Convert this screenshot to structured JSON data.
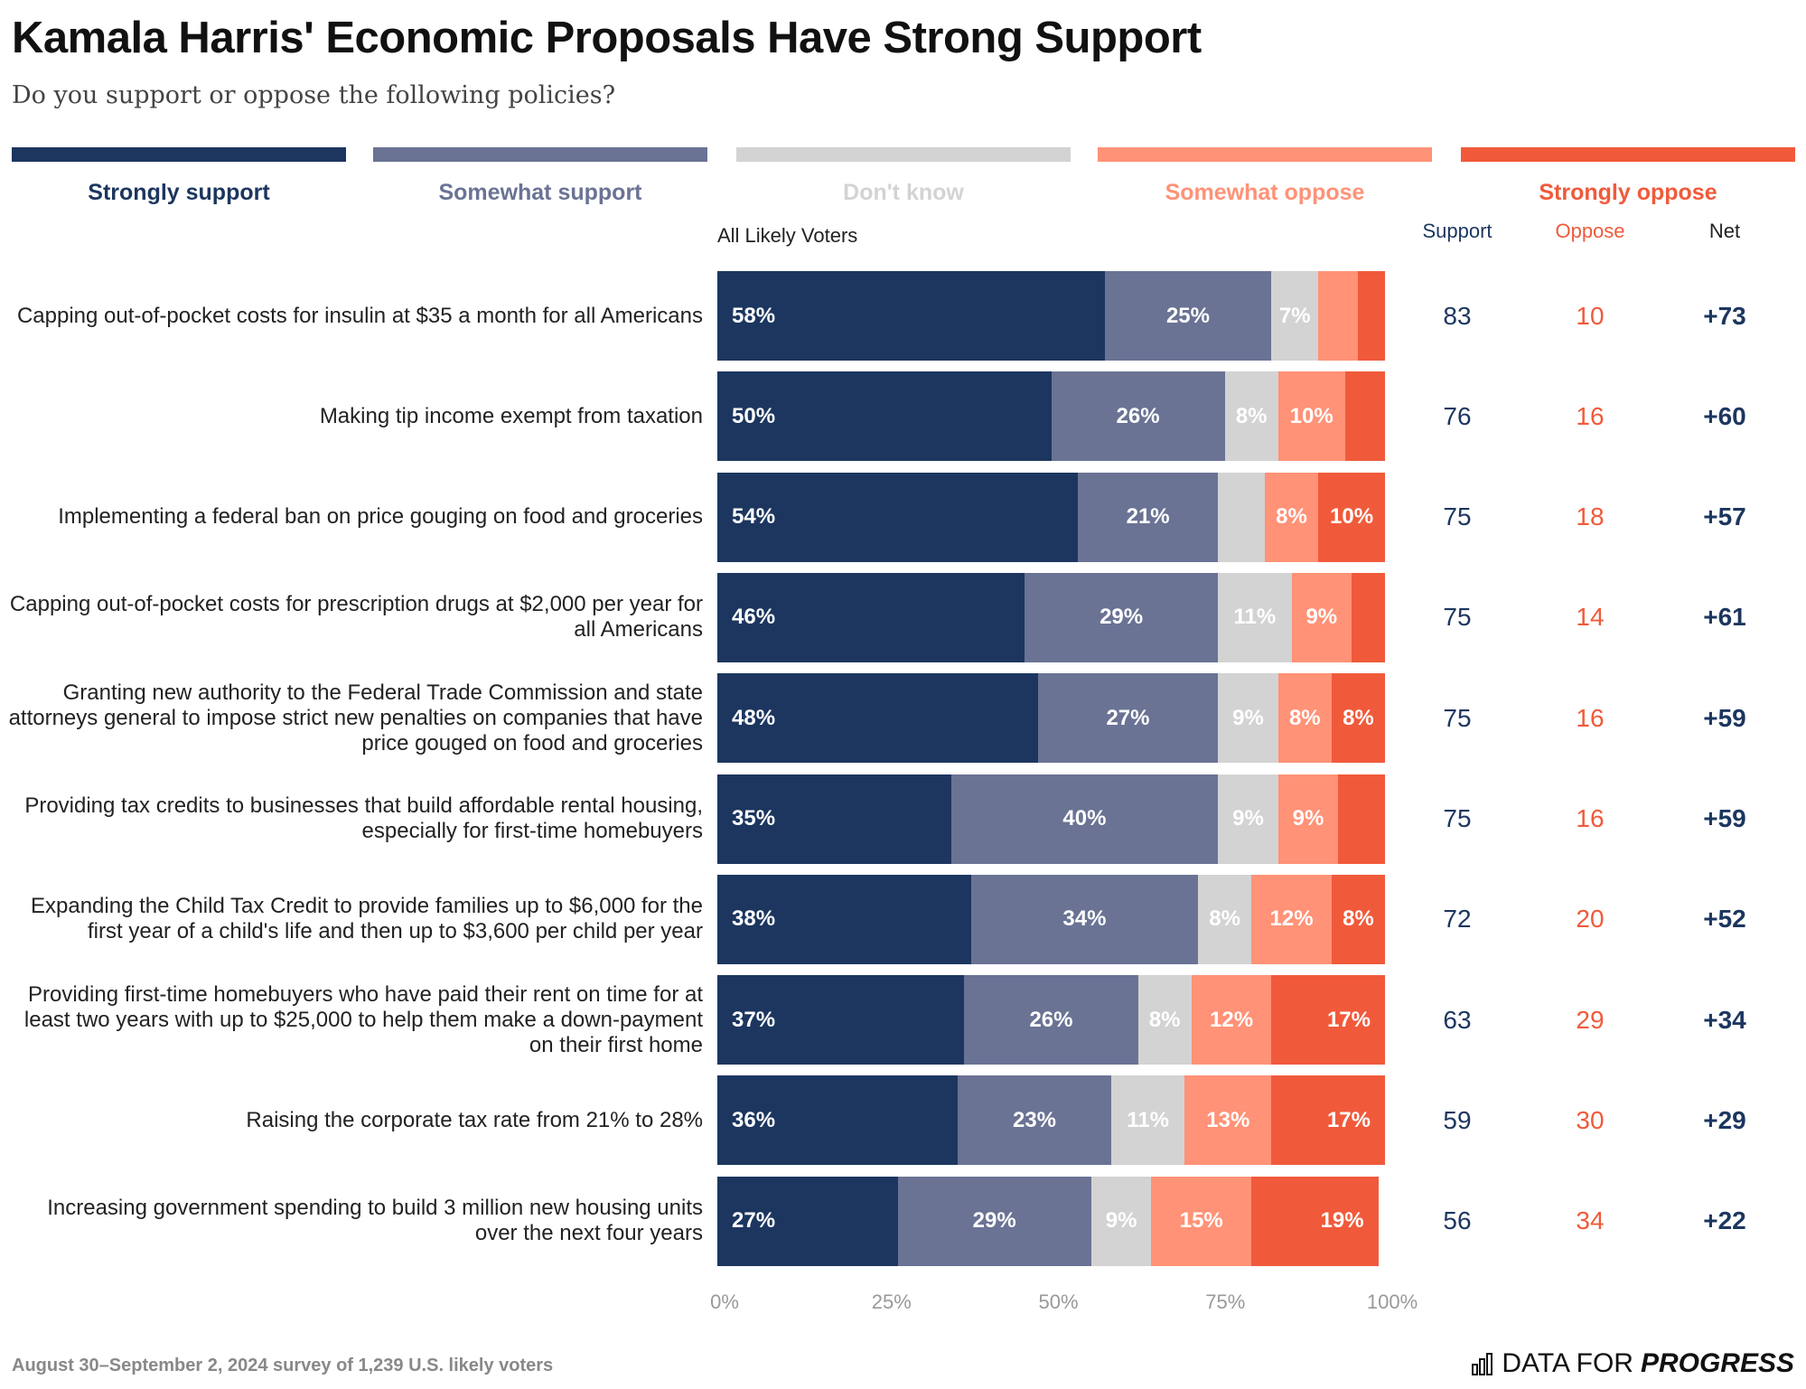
{
  "header": {
    "title": "Kamala Harris' Economic Proposals Have Strong Support",
    "subtitle": "Do you support or oppose the following policies?"
  },
  "legend": [
    {
      "label": "Strongly support",
      "color": "#1c365f"
    },
    {
      "label": "Somewhat support",
      "color": "#6a7394"
    },
    {
      "label": "Don't know",
      "color": "#d3d3d3"
    },
    {
      "label": "Somewhat oppose",
      "color": "#ff9277"
    },
    {
      "label": "Strongly oppose",
      "color": "#f05a3b"
    }
  ],
  "columns": {
    "group": "All Likely Voters",
    "support": "Support",
    "oppose": "Oppose",
    "net": "Net"
  },
  "chart_data": {
    "type": "bar",
    "orientation": "horizontal-stacked-100",
    "xlim": [
      0,
      100
    ],
    "x_ticks": [
      "0%",
      "25%",
      "50%",
      "75%",
      "100%"
    ],
    "series_names": [
      "Strongly support",
      "Somewhat support",
      "Don't know",
      "Somewhat oppose",
      "Strongly oppose"
    ],
    "rows": [
      {
        "label": "Capping out-of-pocket costs for insulin at $35 a month for all Americans",
        "values": [
          58,
          25,
          7,
          6,
          4
        ],
        "labels": [
          "58%",
          "25%",
          "7%",
          "",
          ""
        ],
        "support": "83",
        "oppose": "10",
        "net": "+73"
      },
      {
        "label": "Making tip income exempt from taxation",
        "values": [
          50,
          26,
          8,
          10,
          6
        ],
        "labels": [
          "50%",
          "26%",
          "8%",
          "10%",
          ""
        ],
        "support": "76",
        "oppose": "16",
        "net": "+60"
      },
      {
        "label": "Implementing a federal ban on price gouging on food and groceries",
        "values": [
          54,
          21,
          7,
          8,
          10
        ],
        "labels": [
          "54%",
          "21%",
          "",
          "8%",
          "10%"
        ],
        "support": "75",
        "oppose": "18",
        "net": "+57"
      },
      {
        "label": "Capping out-of-pocket costs for prescription drugs at $2,000 per year for all Americans",
        "values": [
          46,
          29,
          11,
          9,
          5
        ],
        "labels": [
          "46%",
          "29%",
          "11%",
          "9%",
          ""
        ],
        "support": "75",
        "oppose": "14",
        "net": "+61"
      },
      {
        "label": "Granting new authority to the Federal Trade Commission and state attorneys general to impose strict new penalties on companies that have price gouged on food and groceries",
        "values": [
          48,
          27,
          9,
          8,
          8
        ],
        "labels": [
          "48%",
          "27%",
          "9%",
          "8%",
          "8%"
        ],
        "support": "75",
        "oppose": "16",
        "net": "+59"
      },
      {
        "label": "Providing tax credits to businesses that build affordable rental housing, especially for first-time homebuyers",
        "values": [
          35,
          40,
          9,
          9,
          7
        ],
        "labels": [
          "35%",
          "40%",
          "9%",
          "9%",
          ""
        ],
        "support": "75",
        "oppose": "16",
        "net": "+59"
      },
      {
        "label": "Expanding the Child Tax Credit to provide families up to $6,000 for the first year of a child's life and then up to $3,600 per child per year",
        "values": [
          38,
          34,
          8,
          12,
          8
        ],
        "labels": [
          "38%",
          "34%",
          "8%",
          "12%",
          "8%"
        ],
        "support": "72",
        "oppose": "20",
        "net": "+52"
      },
      {
        "label": "Providing first-time homebuyers who have paid their rent on time for at least two years with up to $25,000 to help them make a down-payment on their first home",
        "values": [
          37,
          26,
          8,
          12,
          17
        ],
        "labels": [
          "37%",
          "26%",
          "8%",
          "12%",
          "17%"
        ],
        "support": "63",
        "oppose": "29",
        "net": "+34"
      },
      {
        "label": "Raising the corporate tax rate from 21% to 28%",
        "values": [
          36,
          23,
          11,
          13,
          17
        ],
        "labels": [
          "36%",
          "23%",
          "11%",
          "13%",
          "17%"
        ],
        "support": "59",
        "oppose": "30",
        "net": "+29"
      },
      {
        "label": "Increasing government spending to build 3 million new housing units over the next four years",
        "values": [
          27,
          29,
          9,
          15,
          19
        ],
        "labels": [
          "27%",
          "29%",
          "9%",
          "15%",
          "19%"
        ],
        "support": "56",
        "oppose": "34",
        "net": "+22"
      }
    ]
  },
  "footer": {
    "note": "August 30–September 2, 2024 survey of 1,239 U.S. likely voters",
    "logo_a": "DATA FOR",
    "logo_b": "PROGRESS"
  }
}
